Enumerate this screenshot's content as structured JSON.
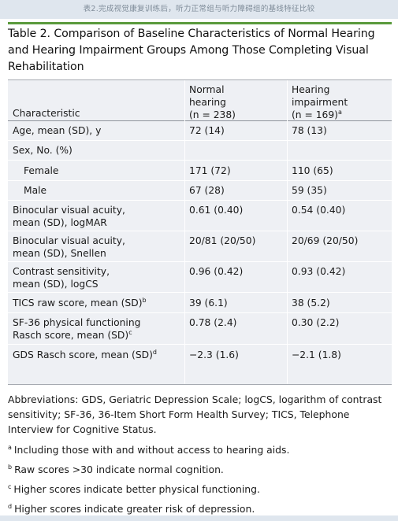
{
  "caption": "表2.完成视觉康复训练后，听力正常组与听力障碍组的基线特征比较",
  "title": "Table 2. Comparison of Baseline Characteristics of Normal Hearing and Hearing Impairment Groups Among Those Completing Visual Rehabilitation",
  "table": {
    "headers": {
      "characteristic": "Characteristic",
      "normal": "Normal\nhearing\n(n = 238)",
      "impair": "Hearing\nimpairment\n(n = 169)",
      "impair_sup": "a"
    },
    "rows": [
      {
        "label": "Age, mean (SD), y",
        "sup": "",
        "normal": "72 (14)",
        "impair": "78 (13)"
      },
      {
        "label": "Sex, No. (%)",
        "sup": "",
        "normal": "",
        "impair": ""
      },
      {
        "label": "Female",
        "sup": "",
        "normal": "171 (72)",
        "impair": "110 (65)"
      },
      {
        "label": "Male",
        "sup": "",
        "normal": "67 (28)",
        "impair": "59 (35)"
      },
      {
        "label": "Binocular visual acuity,\nmean (SD), logMAR",
        "sup": "",
        "normal": "0.61 (0.40)",
        "impair": "0.54 (0.40)"
      },
      {
        "label": "Binocular visual acuity,\nmean (SD), Snellen",
        "sup": "",
        "normal": "20/81 (20/50)",
        "impair": "20/69 (20/50)"
      },
      {
        "label": "Contrast sensitivity,\nmean (SD), logCS",
        "sup": "",
        "normal": "0.96 (0.42)",
        "impair": "0.93 (0.42)"
      },
      {
        "label": "TICS raw score, mean (SD)",
        "sup": "b",
        "normal": "39 (6.1)",
        "impair": "38 (5.2)"
      },
      {
        "label": "SF-36 physical functioning\nRasch score, mean (SD)",
        "sup": "c",
        "normal": "0.78 (2.4)",
        "impair": "0.30 (2.2)"
      },
      {
        "label": "GDS Rasch score, mean (SD)",
        "sup": "d",
        "normal": "−2.3 (1.6)",
        "impair": "−2.1 (1.8)"
      }
    ]
  },
  "notes": {
    "abbreviations": "Abbreviations: GDS, Geriatric Depression Scale; logCS, logarithm of contrast sensitivity; SF-36, 36-Item Short Form Health Survey; TICS, Telephone Interview for Cognitive Status.",
    "footnotes": [
      {
        "mark": "a",
        "text": "Including those with and without access to hearing aids."
      },
      {
        "mark": "b",
        "text": "Raw scores >30 indicate normal cognition."
      },
      {
        "mark": "c",
        "text": "Higher scores indicate better physical functioning."
      },
      {
        "mark": "d",
        "text": "Higher scores indicate greater risk of depression."
      }
    ]
  }
}
